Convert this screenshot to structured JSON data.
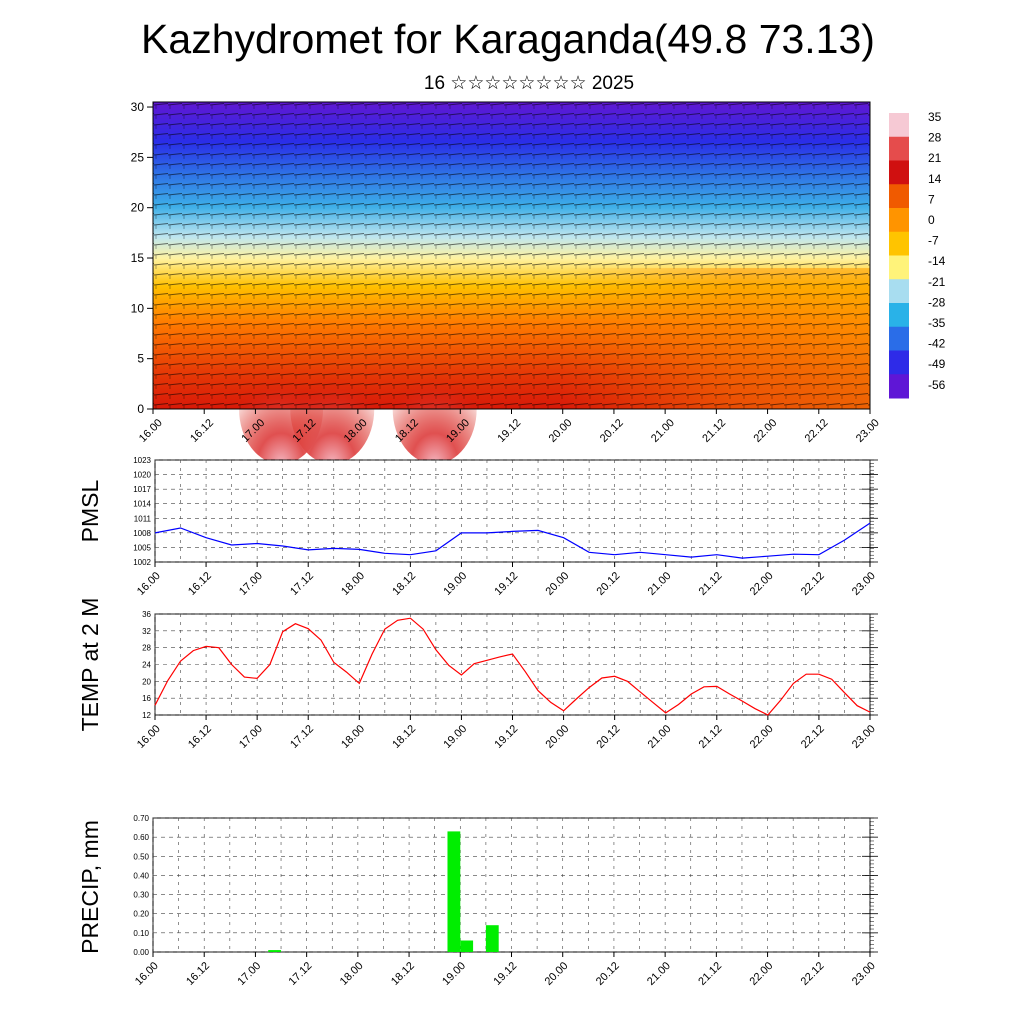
{
  "title": "Kazhydromet for Karaganda(49.8 73.13)",
  "subtitle": "16 ☆☆☆☆☆☆☆☆ 2025",
  "time_labels": [
    "16.00",
    "16.12",
    "17.00",
    "17.12",
    "18.00",
    "18.12",
    "19.00",
    "19.12",
    "20.00",
    "20.12",
    "21.00",
    "21.12",
    "22.00",
    "22.12",
    "23.00"
  ],
  "colorbar": {
    "labels": [
      "35",
      "28",
      "21",
      "14",
      "7",
      "0",
      "-7",
      "-14",
      "-21",
      "-28",
      "-35",
      "-42",
      "-49",
      "-56"
    ],
    "colors": [
      "#f6c9d4",
      "#e54c4c",
      "#d01010",
      "#f05a00",
      "#ff9400",
      "#ffc400",
      "#fff37a",
      "#a8ddf0",
      "#29b2e8",
      "#2a6de8",
      "#2e2be8",
      "#5f16d6"
    ]
  },
  "chart_data": [
    {
      "type": "heatmap",
      "name": "temperature-wind-cross-section",
      "title": "",
      "x_categories": [
        "16.00",
        "16.12",
        "17.00",
        "17.12",
        "18.00",
        "18.12",
        "19.00",
        "19.12",
        "20.00",
        "20.12",
        "21.00",
        "21.12",
        "22.00",
        "22.12",
        "23.00"
      ],
      "yticks": [
        0,
        5,
        10,
        15,
        20,
        25,
        30
      ],
      "ylim": [
        0,
        30.5
      ],
      "color_scale": [
        35,
        -56
      ],
      "note_overlay": "wind barbs"
    },
    {
      "type": "line",
      "ylabel": "PMSL",
      "color": "#0000ff",
      "x": [
        "16.00",
        "16.06",
        "16.12",
        "16.18",
        "17.00",
        "17.06",
        "17.12",
        "17.18",
        "18.00",
        "18.06",
        "18.12",
        "18.18",
        "19.00",
        "19.06",
        "19.12",
        "19.18",
        "20.00",
        "20.06",
        "20.12",
        "20.18",
        "21.00",
        "21.06",
        "21.12",
        "21.18",
        "22.00",
        "22.06",
        "22.12",
        "22.18",
        "23.00"
      ],
      "values": [
        1008,
        1009,
        1007,
        1005.5,
        1005.8,
        1005.3,
        1004.5,
        1004.8,
        1004.6,
        1003.8,
        1003.5,
        1004.3,
        1008,
        1008,
        1008.3,
        1008.5,
        1007,
        1004,
        1003.5,
        1004,
        1003.5,
        1003,
        1003.5,
        1002.8,
        1003.2,
        1003.6,
        1003.5,
        1006.5,
        1010
      ],
      "yticks": [
        1002,
        1005,
        1008,
        1011,
        1014,
        1017,
        1020,
        1023
      ],
      "ylim": [
        1002,
        1023
      ]
    },
    {
      "type": "line",
      "ylabel": "TEMP at 2 M",
      "color": "#ff0000",
      "x": [
        "16.00",
        "16.03",
        "16.06",
        "16.09",
        "16.12",
        "16.15",
        "16.18",
        "16.21",
        "17.00",
        "17.03",
        "17.06",
        "17.09",
        "17.12",
        "17.15",
        "17.18",
        "17.21",
        "18.00",
        "18.03",
        "18.06",
        "18.09",
        "18.12",
        "18.15",
        "18.18",
        "18.21",
        "19.00",
        "19.03",
        "19.06",
        "19.09",
        "19.12",
        "19.15",
        "19.18",
        "19.21",
        "20.00",
        "20.03",
        "20.06",
        "20.09",
        "20.12",
        "20.15",
        "20.18",
        "20.21",
        "21.00",
        "21.03",
        "21.06",
        "21.09",
        "21.12",
        "21.15",
        "21.18",
        "21.21",
        "22.00",
        "22.03",
        "22.06",
        "22.09",
        "22.12",
        "22.15",
        "22.18",
        "22.21",
        "23.00"
      ],
      "values": [
        14.3,
        20.2,
        24.8,
        27.3,
        28.3,
        28,
        24,
        21,
        20.7,
        24,
        31.8,
        33.7,
        32.5,
        29.8,
        24.5,
        22.2,
        19.5,
        26.5,
        32.4,
        34.5,
        35,
        32.4,
        27.5,
        23.8,
        21.5,
        24.2,
        25,
        25.8,
        26.5,
        22.3,
        17.8,
        15,
        13,
        15.8,
        18.5,
        20.8,
        21.2,
        20,
        17.5,
        15,
        12.5,
        14.5,
        17,
        18.7,
        18.8,
        17,
        15.3,
        13.5,
        12,
        15.5,
        19.5,
        21.7,
        21.7,
        20.5,
        17.3,
        14.2,
        12.7
      ],
      "yticks": [
        12,
        16,
        20,
        24,
        28,
        32,
        36
      ],
      "ylim": [
        12,
        36
      ]
    },
    {
      "type": "bar",
      "ylabel": "PRECIP, mm",
      "color": "#00ee00",
      "x": [
        "17.03",
        "18.21",
        "19.00",
        "19.06"
      ],
      "values": [
        0.01,
        0.63,
        0.06,
        0.14
      ],
      "yticks": [
        "0.00",
        "0.10",
        "0.20",
        "0.30",
        "0.40",
        "0.50",
        "0.60",
        "0.70"
      ],
      "ylim": [
        0,
        0.7
      ]
    }
  ]
}
